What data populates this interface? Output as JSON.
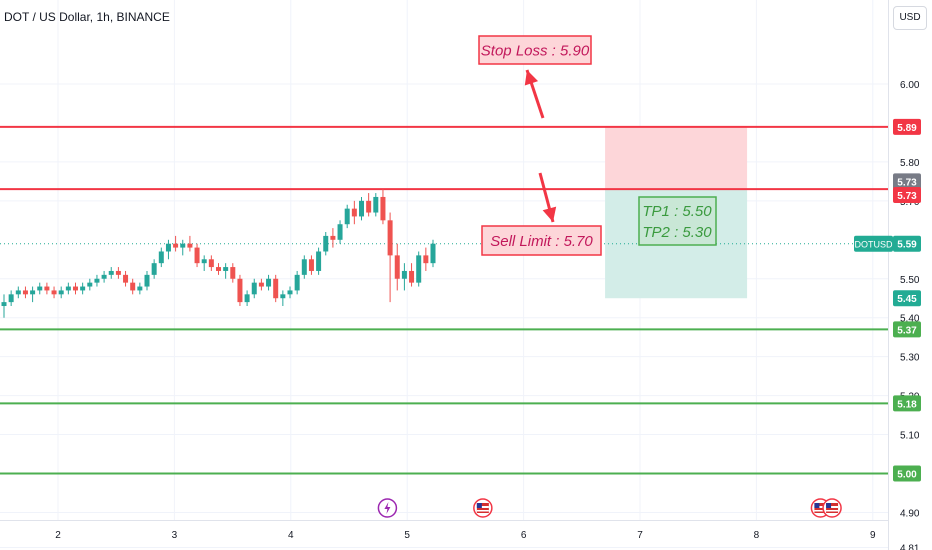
{
  "header": {
    "symbol_title": "DOT / US Dollar, 1h, BINANCE",
    "currency_button": "USD"
  },
  "colors": {
    "up": "#26a69a",
    "down": "#ef5350",
    "red_level": "#f23645",
    "green_level": "#4caf50",
    "current_price": "#22ab94",
    "grid": "#f0f3fa",
    "axis_text": "#131722",
    "stop_zone": "#fdd6d9",
    "profit_zone": "#d3ede8"
  },
  "chart_data": {
    "type": "candlestick",
    "symbol": "DOTUSD",
    "exchange": "BINANCE",
    "timeframe": "1h",
    "y_ticks": [
      "6.00",
      "5.80",
      "5.70",
      "5.50",
      "5.40",
      "5.30",
      "5.20",
      "5.10",
      "4.90",
      "4.81"
    ],
    "x_ticks": [
      "2",
      "3",
      "4",
      "5",
      "6",
      "7",
      "8",
      "9"
    ],
    "ylim": [
      4.78,
      6.1
    ],
    "x_start_day": 1.5,
    "candle_interval_days": 0.0417,
    "candles": [
      [
        5.43,
        5.46,
        5.4,
        5.44
      ],
      [
        5.44,
        5.47,
        5.43,
        5.46
      ],
      [
        5.46,
        5.48,
        5.45,
        5.47
      ],
      [
        5.47,
        5.48,
        5.45,
        5.46
      ],
      [
        5.46,
        5.48,
        5.44,
        5.47
      ],
      [
        5.47,
        5.49,
        5.46,
        5.48
      ],
      [
        5.48,
        5.49,
        5.46,
        5.47
      ],
      [
        5.47,
        5.48,
        5.45,
        5.46
      ],
      [
        5.46,
        5.48,
        5.45,
        5.47
      ],
      [
        5.47,
        5.49,
        5.46,
        5.48
      ],
      [
        5.48,
        5.49,
        5.46,
        5.47
      ],
      [
        5.47,
        5.49,
        5.46,
        5.48
      ],
      [
        5.48,
        5.5,
        5.47,
        5.49
      ],
      [
        5.49,
        5.51,
        5.48,
        5.5
      ],
      [
        5.5,
        5.52,
        5.49,
        5.51
      ],
      [
        5.51,
        5.53,
        5.5,
        5.52
      ],
      [
        5.52,
        5.53,
        5.5,
        5.51
      ],
      [
        5.51,
        5.52,
        5.48,
        5.49
      ],
      [
        5.49,
        5.5,
        5.46,
        5.47
      ],
      [
        5.47,
        5.49,
        5.46,
        5.48
      ],
      [
        5.48,
        5.52,
        5.47,
        5.51
      ],
      [
        5.51,
        5.55,
        5.5,
        5.54
      ],
      [
        5.54,
        5.58,
        5.53,
        5.57
      ],
      [
        5.57,
        5.6,
        5.55,
        5.59
      ],
      [
        5.59,
        5.61,
        5.57,
        5.58
      ],
      [
        5.58,
        5.6,
        5.56,
        5.59
      ],
      [
        5.59,
        5.61,
        5.57,
        5.58
      ],
      [
        5.58,
        5.59,
        5.53,
        5.54
      ],
      [
        5.54,
        5.56,
        5.52,
        5.55
      ],
      [
        5.55,
        5.56,
        5.52,
        5.53
      ],
      [
        5.53,
        5.54,
        5.51,
        5.52
      ],
      [
        5.52,
        5.54,
        5.5,
        5.53
      ],
      [
        5.53,
        5.54,
        5.49,
        5.5
      ],
      [
        5.5,
        5.51,
        5.43,
        5.44
      ],
      [
        5.44,
        5.47,
        5.43,
        5.46
      ],
      [
        5.46,
        5.5,
        5.45,
        5.49
      ],
      [
        5.49,
        5.5,
        5.47,
        5.48
      ],
      [
        5.48,
        5.51,
        5.47,
        5.5
      ],
      [
        5.5,
        5.51,
        5.44,
        5.45
      ],
      [
        5.45,
        5.47,
        5.43,
        5.46
      ],
      [
        5.46,
        5.48,
        5.45,
        5.47
      ],
      [
        5.47,
        5.52,
        5.46,
        5.51
      ],
      [
        5.51,
        5.56,
        5.5,
        5.55
      ],
      [
        5.55,
        5.56,
        5.51,
        5.52
      ],
      [
        5.52,
        5.58,
        5.51,
        5.57
      ],
      [
        5.57,
        5.62,
        5.56,
        5.61
      ],
      [
        5.61,
        5.63,
        5.58,
        5.6
      ],
      [
        5.6,
        5.65,
        5.59,
        5.64
      ],
      [
        5.64,
        5.69,
        5.63,
        5.68
      ],
      [
        5.68,
        5.7,
        5.64,
        5.66
      ],
      [
        5.66,
        5.71,
        5.65,
        5.7
      ],
      [
        5.7,
        5.72,
        5.66,
        5.67
      ],
      [
        5.67,
        5.72,
        5.66,
        5.71
      ],
      [
        5.71,
        5.73,
        5.64,
        5.65
      ],
      [
        5.65,
        5.67,
        5.44,
        5.56
      ],
      [
        5.56,
        5.59,
        5.47,
        5.5
      ],
      [
        5.5,
        5.54,
        5.47,
        5.52
      ],
      [
        5.52,
        5.54,
        5.48,
        5.49
      ],
      [
        5.49,
        5.57,
        5.48,
        5.56
      ],
      [
        5.56,
        5.58,
        5.52,
        5.54
      ],
      [
        5.54,
        5.6,
        5.53,
        5.59
      ]
    ],
    "horizontal_levels": [
      {
        "price": 5.89,
        "color": "red"
      },
      {
        "price": 5.73,
        "color": "red"
      },
      {
        "price": 5.37,
        "color": "green"
      },
      {
        "price": 5.18,
        "color": "green"
      },
      {
        "price": 5.0,
        "color": "green"
      }
    ],
    "price_labels": [
      {
        "text": "5.89",
        "price": 5.89,
        "color": "#f23645"
      },
      {
        "text": "5.73",
        "price": 5.75,
        "color": "#787b86"
      },
      {
        "text": "5.73",
        "price": 5.715,
        "color": "#f23645"
      },
      {
        "text": "5.59",
        "price": 5.59,
        "color": "#22ab94"
      },
      {
        "text": "5.45",
        "price": 5.45,
        "color": "#22ab94"
      },
      {
        "text": "5.37",
        "price": 5.37,
        "color": "#4caf50"
      },
      {
        "text": "5.18",
        "price": 5.18,
        "color": "#4caf50"
      },
      {
        "text": "5.00",
        "price": 5.0,
        "color": "#4caf50"
      }
    ],
    "current_price_tag": "DOTUSD",
    "current_price": 5.59,
    "position_box": {
      "day_start": 6.7,
      "day_end": 7.92,
      "entry": 5.73,
      "stop": 5.89,
      "target": 5.45
    },
    "annotations": [
      {
        "text": "Stop Loss : 5.90",
        "kind": "stop"
      },
      {
        "text": "Sell Limit : 5.70",
        "kind": "entry"
      },
      {
        "text": "TP1 : 5.50",
        "kind": "tp"
      },
      {
        "text": "TP2 : 5.30",
        "kind": "tp"
      }
    ],
    "event_markers": [
      {
        "day": 4.83,
        "icon": "lightning-icon"
      },
      {
        "day": 5.65,
        "icon": "us-flag-icon"
      },
      {
        "day": 8.55,
        "icon": "us-flag-icon"
      },
      {
        "day": 8.65,
        "icon": "us-flag-icon"
      }
    ]
  }
}
